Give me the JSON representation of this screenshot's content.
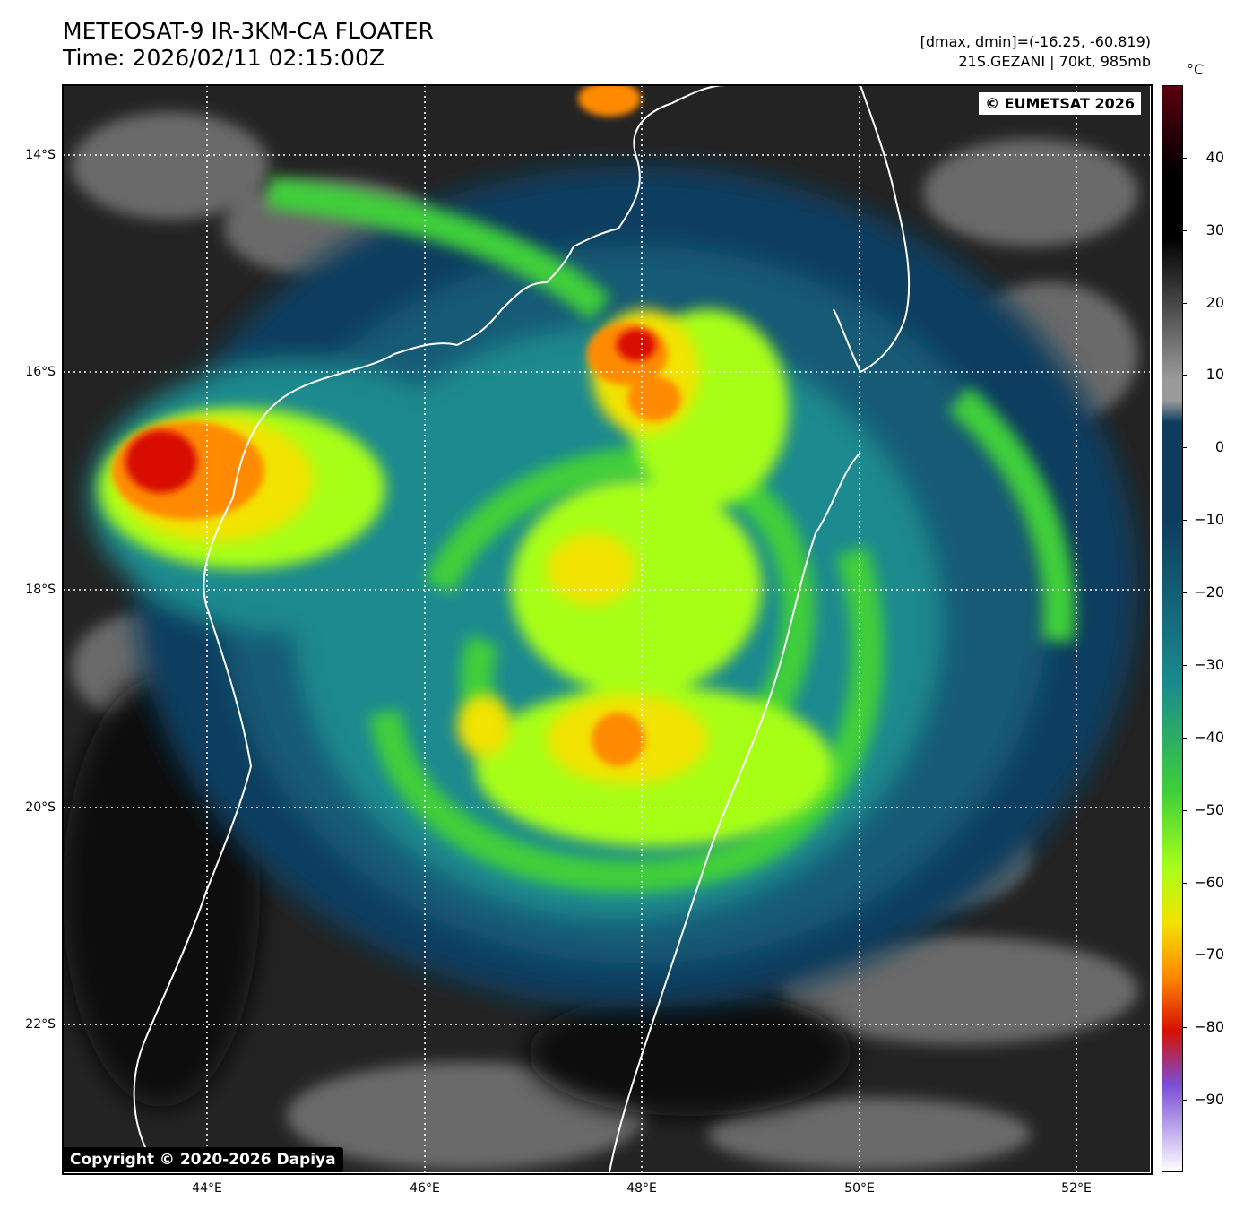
{
  "title": {
    "line1": "METEOSAT-9 IR-3KM-CA FLOATER",
    "line2": "Time: 2026/02/11 02:15:00Z"
  },
  "info": {
    "line1": "[dmax, dmin]=(-16.25, -60.819)",
    "line2": "21S.GEZANI | 70kt, 985mb"
  },
  "credits": {
    "top_right": "© EUMETSAT 2026",
    "bottom_left": "Copyright © 2020-2026 Dapiya"
  },
  "axes": {
    "lat_labels": [
      "14°S",
      "16°S",
      "18°S",
      "20°S",
      "22°S"
    ],
    "lon_labels": [
      "44°E",
      "46°E",
      "48°E",
      "50°E",
      "52°E"
    ]
  },
  "colorbar": {
    "unit": "°C",
    "ticks": [
      "40",
      "30",
      "20",
      "10",
      "0",
      "−10",
      "−20",
      "−30",
      "−40",
      "−50",
      "−60",
      "−70",
      "−80",
      "−90"
    ],
    "range": [
      -100,
      50
    ],
    "colors": {
      "warm_top": "#5a0010",
      "black": "#000000",
      "gray": "#9a9a9a",
      "dark_blue": "#0d3c5e",
      "teal": "#1a8a8f",
      "green": "#3fcf3a",
      "lime": "#a7ff19",
      "yellow": "#f2e300",
      "orange": "#ff8a00",
      "red": "#d81000",
      "purple": "#7a4dd6",
      "pale": "#ffffff"
    }
  },
  "storm": {
    "name": "21S.GEZANI",
    "wind": "70kt",
    "pressure": "985mb"
  }
}
